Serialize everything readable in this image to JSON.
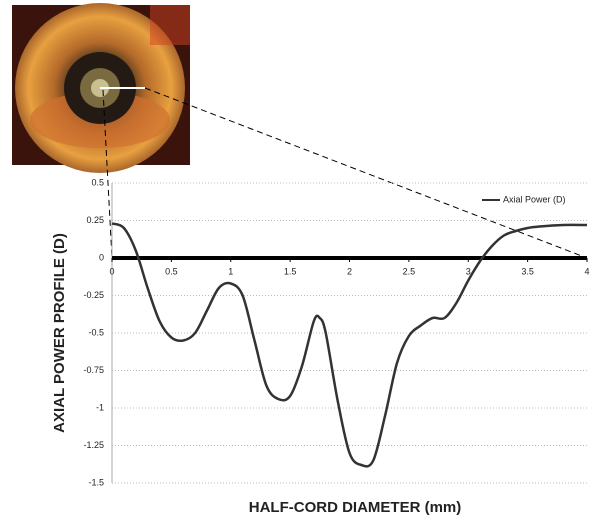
{
  "chart_data": {
    "type": "line",
    "xlabel": "HALF-CORD DIAMETER (mm)",
    "ylabel": "AXIAL POWER PROFILE (D)",
    "x": [
      0,
      0.1,
      0.2,
      0.3,
      0.4,
      0.5,
      0.6,
      0.7,
      0.8,
      0.9,
      1.0,
      1.1,
      1.2,
      1.3,
      1.4,
      1.5,
      1.6,
      1.7,
      1.75,
      1.8,
      1.9,
      2.0,
      2.1,
      2.2,
      2.3,
      2.4,
      2.5,
      2.6,
      2.7,
      2.8,
      2.9,
      3.0,
      3.1,
      3.2,
      3.3,
      3.4,
      3.5,
      3.6,
      3.8,
      4.0
    ],
    "series": [
      {
        "name": "Axial Power (D)",
        "color": "#333333",
        "values": [
          0.23,
          0.2,
          0.05,
          -0.2,
          -0.42,
          -0.53,
          -0.55,
          -0.5,
          -0.35,
          -0.2,
          -0.17,
          -0.25,
          -0.55,
          -0.85,
          -0.94,
          -0.92,
          -0.72,
          -0.42,
          -0.4,
          -0.5,
          -0.95,
          -1.3,
          -1.38,
          -1.35,
          -1.05,
          -0.7,
          -0.52,
          -0.45,
          -0.4,
          -0.4,
          -0.3,
          -0.15,
          -0.02,
          0.08,
          0.15,
          0.18,
          0.2,
          0.21,
          0.22,
          0.22
        ]
      }
    ],
    "xlim": [
      0,
      4
    ],
    "xticks": [
      0,
      0.5,
      1,
      1.5,
      2,
      2.5,
      3,
      3.5,
      4
    ],
    "ylim": [
      -1.5,
      0.5
    ],
    "yticks": [
      0.5,
      0.25,
      0,
      -0.25,
      -0.5,
      -0.75,
      -1,
      -1.25,
      -1.5
    ],
    "grid": true,
    "legend": "upper right"
  }
}
